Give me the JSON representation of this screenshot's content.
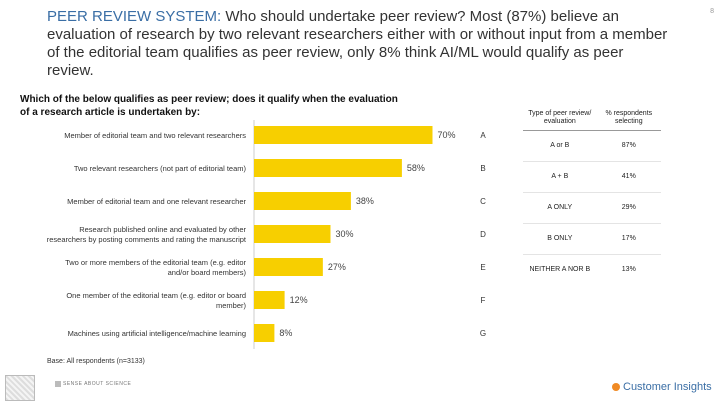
{
  "page": {
    "number": "8"
  },
  "headline": {
    "system": "PEER REVIEW SYSTEM:",
    "text": " Who should undertake peer review? Most (87%) believe an evaluation of research by two relevant researchers either with or without input from a member of the editorial team qualifies as peer review, only 8% think AI/ML would qualify as peer review."
  },
  "question": "Which of the below qualifies as peer review; does it qualify when the evaluation of a research article is undertaken by:",
  "base_note": "Base: All respondents (n=3133)",
  "logos": {
    "left": "SENSE ABOUT SCIENCE",
    "right": "Customer Insights"
  },
  "colors": {
    "bar": "#f7cf00",
    "headline_accent": "#3a6ea5"
  },
  "chart_data": {
    "type": "bar",
    "orientation": "horizontal",
    "categories": [
      "Member of editorial team and two relevant researchers",
      "Two relevant researchers (not part of editorial team)",
      "Member of editorial team and one relevant researcher",
      "Research published online and evaluated by other researchers by posting comments and rating the manuscript",
      "Two or more members of the editorial team (e.g. editor and/or board members)",
      "One member of the editorial team (e.g. editor or board member)",
      "Machines using artificial intelligence/machine learning"
    ],
    "values": [
      70,
      58,
      38,
      30,
      27,
      12,
      8
    ],
    "value_labels": [
      "70%",
      "58%",
      "38%",
      "30%",
      "27%",
      "12%",
      "8%"
    ],
    "letters": [
      "A",
      "B",
      "C",
      "D",
      "E",
      "F",
      "G"
    ],
    "xlim": [
      0,
      100
    ],
    "grid": false
  },
  "table": {
    "headers": [
      "Type of peer review/ evaluation",
      "% respondents selecting"
    ],
    "rows": [
      [
        "A or B",
        "87%"
      ],
      [
        "A + B",
        "41%"
      ],
      [
        "A ONLY",
        "29%"
      ],
      [
        "B ONLY",
        "17%"
      ],
      [
        "NEITHER A NOR B",
        "13%"
      ]
    ]
  }
}
